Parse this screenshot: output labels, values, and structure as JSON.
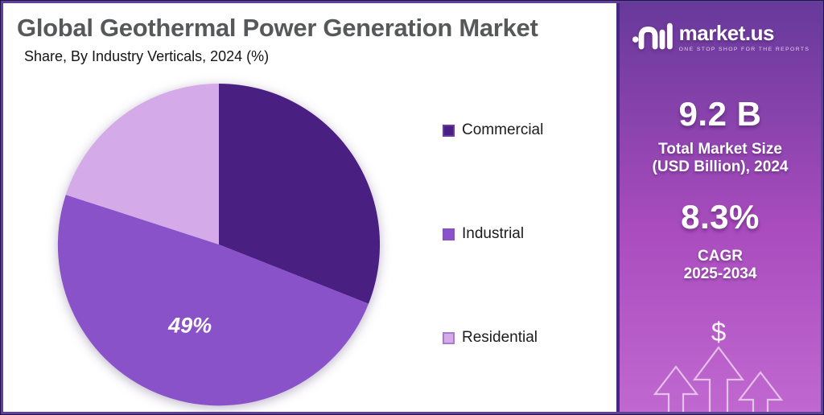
{
  "chart_data": {
    "type": "pie",
    "title": "Global Geothermal Power Generation Market",
    "subtitle": "Share, By Industry Verticals, 2024 (%)",
    "labels": [
      "Commercial",
      "Industrial",
      "Residential"
    ],
    "values": [
      31,
      49,
      20
    ],
    "slice_labels": [
      "",
      "49%",
      ""
    ],
    "colors": [
      "#4a1f82",
      "#8a52c8",
      "#d5aae9"
    ],
    "start_angle_deg": 0,
    "direction": "clockwise",
    "legend_position": "right",
    "label_color": "#ffffff"
  },
  "sidebar": {
    "brand": "market.us",
    "tagline": "ONE STOP SHOP FOR THE REPORTS",
    "stats": [
      {
        "value": "9.2 B",
        "line1": "Total Market Size",
        "line2": "(USD Billion), 2024"
      },
      {
        "value": "8.3%",
        "line1": "CAGR",
        "line2": "2025-2034"
      }
    ],
    "icons": {
      "dollar": "$"
    },
    "colors": {
      "gradient_top": "#67399a",
      "gradient_mid": "#a94cbe",
      "gradient_bottom": "#c068d0"
    }
  },
  "frame": {
    "border_color": "#5f4198",
    "title_color": "#57585a",
    "background": "#ffffff"
  }
}
